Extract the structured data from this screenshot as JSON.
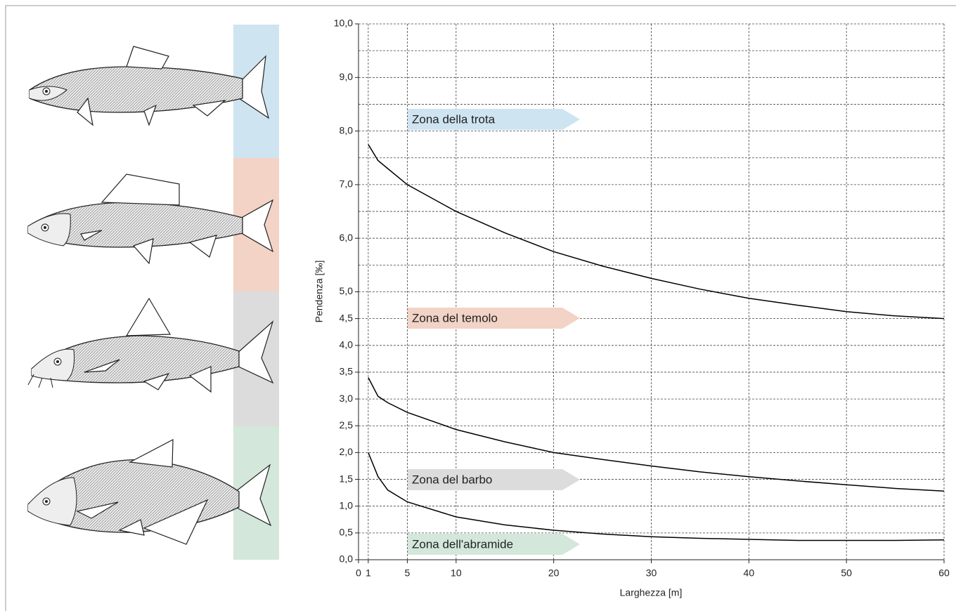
{
  "chart_data": {
    "type": "line",
    "x_label": "Larghezza [m]",
    "y_label": "Pendenza [‰]",
    "x": [
      1,
      2,
      3,
      5,
      10,
      15,
      20,
      25,
      30,
      35,
      40,
      45,
      50,
      55,
      60
    ],
    "series": [
      {
        "color": "#000000",
        "values": [
          7.75,
          7.45,
          7.3,
          7.0,
          6.5,
          6.1,
          5.75,
          5.48,
          5.25,
          5.05,
          4.88,
          4.75,
          4.63,
          4.55,
          4.5
        ]
      },
      {
        "color": "#000000",
        "values": [
          3.4,
          3.05,
          2.93,
          2.75,
          2.43,
          2.2,
          2.0,
          1.87,
          1.75,
          1.64,
          1.55,
          1.47,
          1.4,
          1.33,
          1.28
        ]
      },
      {
        "color": "#000000",
        "values": [
          2.0,
          1.55,
          1.3,
          1.08,
          0.8,
          0.65,
          0.55,
          0.48,
          0.43,
          0.4,
          0.38,
          0.36,
          0.36,
          0.36,
          0.37
        ]
      }
    ],
    "xlim": [
      0,
      60
    ],
    "xticks": [
      0,
      1,
      5,
      10,
      20,
      30,
      40,
      50,
      60
    ],
    "ylim": [
      0,
      10
    ],
    "yticks": [
      {
        "value": 0,
        "label": "0,0"
      },
      {
        "value": 0.5,
        "label": "0,5"
      },
      {
        "value": 1,
        "label": "1,0"
      },
      {
        "value": 1.5,
        "label": "1,5"
      },
      {
        "value": 2,
        "label": "2,0"
      },
      {
        "value": 2.5,
        "label": "2,5"
      },
      {
        "value": 3,
        "label": "3,0"
      },
      {
        "value": 3.5,
        "label": "3,5"
      },
      {
        "value": 4,
        "label": "4,0"
      },
      {
        "value": 4.5,
        "label": "4,5"
      },
      {
        "value": 5,
        "label": "5,0"
      },
      {
        "value": 6,
        "label": "6,0"
      },
      {
        "value": 7,
        "label": "7,0"
      },
      {
        "value": 8,
        "label": "8,0"
      },
      {
        "value": 9,
        "label": "9,0"
      },
      {
        "value": 10,
        "label": "10,0"
      }
    ],
    "y_minor_gridlines": [
      5.5,
      6.5,
      7.5,
      8.5,
      9.5
    ],
    "grid": true,
    "zones": [
      {
        "text": "Zona della trota",
        "color": "#cfe4f1"
      },
      {
        "text": "Zona del temolo",
        "color": "#f2d3c6"
      },
      {
        "text": "Zona del barbo",
        "color": "#dcdcdc"
      },
      {
        "text": "Zona dell'abramide",
        "color": "#d3e7db"
      }
    ]
  }
}
